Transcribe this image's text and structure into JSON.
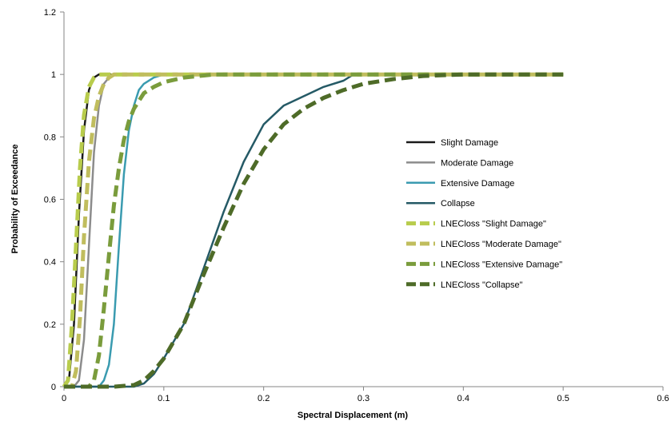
{
  "chart_data": {
    "type": "line",
    "title": "",
    "xlabel": "Spectral Displacement (m)",
    "ylabel": "Probability of Exceedance",
    "xlim": [
      0,
      0.6
    ],
    "ylim": [
      0,
      1.2
    ],
    "x_ticks": [
      "0",
      "0.1",
      "0.2",
      "0.3",
      "0.4",
      "0.5",
      "0.6"
    ],
    "y_ticks": [
      "0",
      "0.2",
      "0.4",
      "0.6",
      "0.8",
      "1",
      "1.2"
    ],
    "grid": false,
    "legend_position": "right",
    "series": [
      {
        "name": "Slight Damage",
        "color": "#1a1a1a",
        "dash": "solid",
        "x": [
          0,
          0.005,
          0.01,
          0.015,
          0.02,
          0.025,
          0.03,
          0.035,
          0.5
        ],
        "y": [
          0,
          0.02,
          0.2,
          0.55,
          0.82,
          0.95,
          0.99,
          1,
          1
        ]
      },
      {
        "name": "Moderate Damage",
        "color": "#8c8c8c",
        "dash": "solid",
        "x": [
          0,
          0.01,
          0.015,
          0.02,
          0.025,
          0.03,
          0.035,
          0.04,
          0.045,
          0.05,
          0.055,
          0.5
        ],
        "y": [
          0,
          0,
          0.02,
          0.15,
          0.45,
          0.75,
          0.9,
          0.97,
          0.99,
          1,
          1,
          1
        ]
      },
      {
        "name": "Extensive Damage",
        "color": "#3a9bb0",
        "dash": "solid",
        "x": [
          0,
          0.035,
          0.04,
          0.045,
          0.05,
          0.055,
          0.06,
          0.065,
          0.07,
          0.075,
          0.08,
          0.09,
          0.1,
          0.11,
          0.5
        ],
        "y": [
          0,
          0,
          0.02,
          0.07,
          0.2,
          0.45,
          0.68,
          0.82,
          0.9,
          0.95,
          0.97,
          0.99,
          1,
          1,
          1
        ]
      },
      {
        "name": "Collapse",
        "color": "#255a66",
        "dash": "solid",
        "x": [
          0,
          0.07,
          0.08,
          0.09,
          0.1,
          0.12,
          0.14,
          0.16,
          0.18,
          0.2,
          0.22,
          0.24,
          0.26,
          0.28,
          0.29,
          0.5
        ],
        "y": [
          0,
          0,
          0.01,
          0.04,
          0.09,
          0.2,
          0.38,
          0.56,
          0.72,
          0.84,
          0.9,
          0.93,
          0.96,
          0.98,
          1,
          1
        ]
      },
      {
        "name": "LNECloss \"Slight Damage\"",
        "color": "#b8cc4c",
        "dash": "dashed",
        "x": [
          0,
          0.004,
          0.008,
          0.012,
          0.016,
          0.02,
          0.025,
          0.03,
          0.035,
          0.04,
          0.5
        ],
        "y": [
          0,
          0.02,
          0.2,
          0.45,
          0.7,
          0.87,
          0.96,
          0.99,
          1,
          1,
          1
        ]
      },
      {
        "name": "LNECloss \"Moderate Damage\"",
        "color": "#c0bd5e",
        "dash": "dashed",
        "x": [
          0,
          0.008,
          0.012,
          0.016,
          0.02,
          0.025,
          0.03,
          0.035,
          0.04,
          0.045,
          0.05,
          0.06,
          0.5
        ],
        "y": [
          0,
          0,
          0.05,
          0.22,
          0.48,
          0.72,
          0.86,
          0.93,
          0.97,
          0.99,
          1,
          1,
          1
        ]
      },
      {
        "name": "LNECloss \"Extensive Damage\"",
        "color": "#7a9c3c",
        "dash": "dashed",
        "x": [
          0,
          0.025,
          0.03,
          0.035,
          0.04,
          0.045,
          0.05,
          0.055,
          0.06,
          0.065,
          0.07,
          0.08,
          0.09,
          0.1,
          0.12,
          0.15,
          0.18,
          0.5
        ],
        "y": [
          0,
          0,
          0.02,
          0.1,
          0.25,
          0.42,
          0.58,
          0.7,
          0.79,
          0.85,
          0.89,
          0.94,
          0.96,
          0.975,
          0.99,
          1,
          1,
          1
        ]
      },
      {
        "name": "LNECloss \"Collapse\"",
        "color": "#4e6b28",
        "dash": "dashed",
        "x": [
          0,
          0.05,
          0.07,
          0.08,
          0.09,
          0.1,
          0.12,
          0.14,
          0.16,
          0.18,
          0.2,
          0.22,
          0.24,
          0.26,
          0.28,
          0.3,
          0.33,
          0.36,
          0.4,
          0.5
        ],
        "y": [
          0,
          0,
          0.005,
          0.02,
          0.05,
          0.09,
          0.2,
          0.36,
          0.51,
          0.65,
          0.76,
          0.84,
          0.89,
          0.925,
          0.95,
          0.97,
          0.985,
          0.995,
          1,
          1
        ]
      }
    ]
  }
}
